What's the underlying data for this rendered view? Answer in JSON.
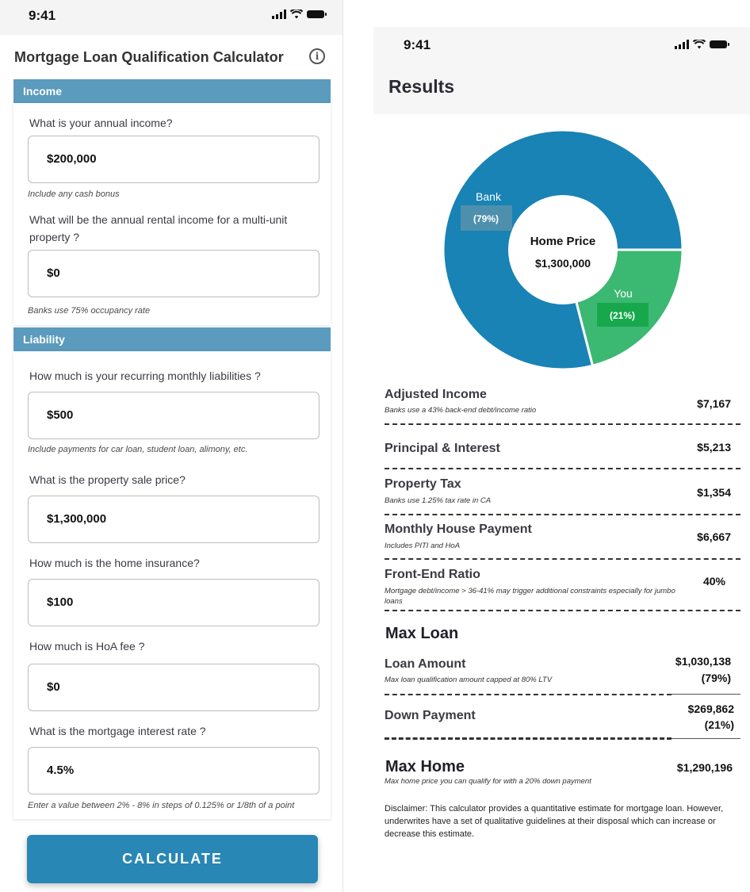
{
  "left_screen": {
    "status_time": "9:41",
    "title": "Mortgage Loan Qualification Calculator",
    "income_section": "Income",
    "liability_section": "Liability",
    "fields": {
      "annual_income": {
        "question": "What is your annual income?",
        "value": "$200,000",
        "hint": "Include any cash bonus"
      },
      "rental_income": {
        "question": "What will be the annual rental income for a multi-unit property ?",
        "value": "$0",
        "hint": "Banks use 75% occupancy rate"
      },
      "liabilities": {
        "question": "How much is your recurring monthly liabilities ?",
        "value": "$500",
        "hint": "Include payments for car loan, student loan, alimony, etc."
      },
      "sale_price": {
        "question": "What is the property sale price?",
        "value": "$1,300,000"
      },
      "insurance": {
        "question": "How much is the home insurance?",
        "value": "$100"
      },
      "hoa": {
        "question": "How much is HoA fee ?",
        "value": "$0"
      },
      "interest": {
        "question": "What is the mortgage interest rate ?",
        "value": "4.5%",
        "hint": "Enter a value between 2% - 8% in steps of 0.125% or 1/8th of a point"
      }
    },
    "calculate_label": "CALCULATE"
  },
  "right_screen": {
    "status_time": "9:41",
    "title": "Results",
    "donut": {
      "center_title": "Home Price",
      "center_value": "$1,300,000",
      "bank_label": "Bank",
      "bank_pct": "(79%)",
      "bank_share": 0.79,
      "bank_color": "#1883b4",
      "you_label": "You",
      "you_pct": "(21%)",
      "you_share": 0.21,
      "you_color": "#3bb872"
    },
    "adjusted_income": {
      "label": "Adjusted Income",
      "sub": "Banks use a 43% back-end debt/income ratio",
      "value": "$7,167"
    },
    "principal_interest": {
      "label": "Principal & Interest",
      "value": "$5,213"
    },
    "property_tax": {
      "label": "Property Tax",
      "sub": "Banks use 1.25% tax rate in CA",
      "value": "$1,354"
    },
    "monthly_payment": {
      "label": "Monthly House Payment",
      "sub": "Includes PITI and HoA",
      "value": "$6,667"
    },
    "front_end_ratio": {
      "label": "Front-End Ratio",
      "sub": "Mortgage debt/income > 36-41% may trigger additional constraints especially for jumbo loans",
      "value": "40%"
    },
    "max_loan_heading": "Max Loan",
    "loan_amount": {
      "label": "Loan Amount",
      "sub": "Max loan qualification amount capped at 80% LTV",
      "value": "$1,030,138",
      "pct": "(79%)"
    },
    "down_payment": {
      "label": "Down Payment",
      "value": "$269,862",
      "pct": "(21%)"
    },
    "max_home": {
      "label": "Max Home",
      "sub": "Max home price you can qualify for with a 20% down payment",
      "value": "$1,290,196"
    },
    "disclaimer": "Disclaimer:  This calculator provides a quantitative estimate for mortgage loan. However, underwrites have a set of qualitative guidelines at their disposal which can increase or decrease this estimate."
  }
}
